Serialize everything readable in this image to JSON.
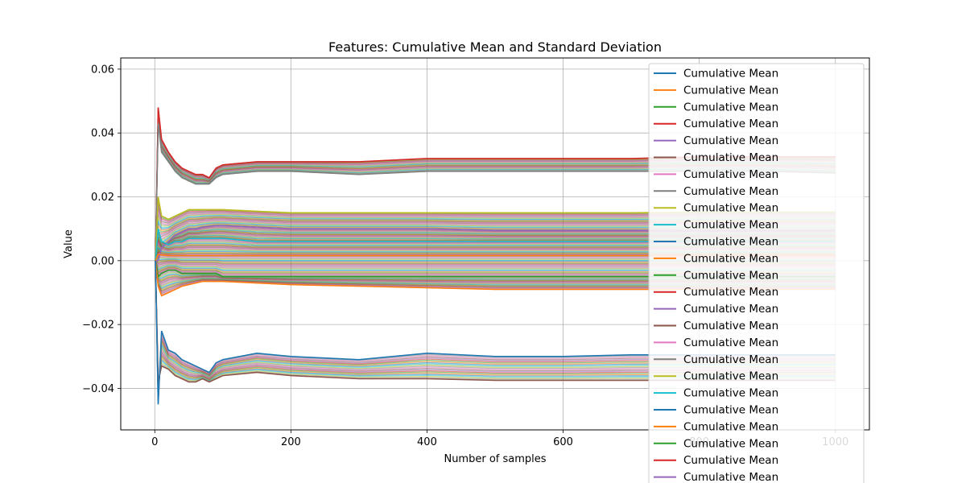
{
  "chart_data": {
    "type": "line",
    "title": "Features: Cumulative Mean and Standard Deviation",
    "xlabel": "Number of samples",
    "ylabel": "Value",
    "xlim": [
      -50,
      1050
    ],
    "ylim": [
      -0.053,
      0.0635
    ],
    "x_ticks": [
      0,
      200,
      400,
      600,
      800,
      1000
    ],
    "x_tick_labels": [
      "0",
      "200",
      "400",
      "600",
      "800",
      "1000"
    ],
    "y_ticks": [
      -0.04,
      -0.02,
      0.0,
      0.02,
      0.04,
      0.06
    ],
    "y_tick_labels": [
      "−0.04",
      "−0.02",
      "0.00",
      "0.02",
      "0.04",
      "0.06"
    ],
    "grid": true,
    "legend_position": "upper-right",
    "x_samples": [
      1,
      5,
      10,
      20,
      30,
      40,
      50,
      60,
      70,
      80,
      90,
      100,
      150,
      200,
      300,
      400,
      500,
      600,
      700,
      800,
      900,
      1000
    ],
    "series": [
      {
        "name": "Cumulative Mean",
        "color": "#d62728",
        "values": [
          0.0,
          0.048,
          0.038,
          0.034,
          0.031,
          0.029,
          0.028,
          0.027,
          0.027,
          0.026,
          0.029,
          0.03,
          0.031,
          0.031,
          0.031,
          0.032,
          0.032,
          0.032,
          0.032,
          0.0325,
          0.0325,
          0.0325
        ]
      },
      {
        "name": "Cumulative Mean",
        "color": "#7f7f7f",
        "values": [
          0.0,
          0.043,
          0.034,
          0.031,
          0.028,
          0.026,
          0.025,
          0.024,
          0.024,
          0.024,
          0.026,
          0.027,
          0.028,
          0.028,
          0.027,
          0.028,
          0.028,
          0.028,
          0.028,
          0.028,
          0.028,
          0.0275
        ]
      },
      {
        "name": "Cumulative Mean",
        "color": "#bcbd22",
        "values": [
          0.0,
          0.02,
          0.014,
          0.013,
          0.014,
          0.015,
          0.016,
          0.016,
          0.016,
          0.016,
          0.016,
          0.016,
          0.0155,
          0.015,
          0.015,
          0.015,
          0.015,
          0.015,
          0.015,
          0.0152,
          0.0152,
          0.0152
        ]
      },
      {
        "name": "Cumulative Mean",
        "color": "#9467bd",
        "values": [
          0.0,
          0.0,
          0.004,
          0.006,
          0.008,
          0.009,
          0.01,
          0.01,
          0.0105,
          0.0108,
          0.011,
          0.011,
          0.0105,
          0.01,
          0.01,
          0.01,
          0.0095,
          0.0095,
          0.0095,
          0.0095,
          0.0095,
          0.0095
        ]
      },
      {
        "name": "Cumulative Mean",
        "color": "#17becf",
        "values": [
          0.0,
          0.01,
          0.006,
          0.005,
          0.006,
          0.006,
          0.007,
          0.007,
          0.007,
          0.007,
          0.007,
          0.007,
          0.006,
          0.006,
          0.006,
          0.006,
          0.006,
          0.006,
          0.006,
          0.006,
          0.006,
          0.006
        ]
      },
      {
        "name": "Cumulative Mean",
        "color": "#ff7f0e",
        "values": [
          0.0,
          0.002,
          0.0018,
          0.0016,
          0.0016,
          0.0016,
          0.0016,
          0.0016,
          0.0016,
          0.0016,
          0.0016,
          0.0016,
          0.0016,
          0.0016,
          0.0016,
          0.0016,
          0.0016,
          0.0016,
          0.0016,
          0.0016,
          0.0016,
          0.0016
        ]
      },
      {
        "name": "Cumulative Mean",
        "color": "#2ca02c",
        "values": [
          0.0,
          -0.005,
          -0.004,
          -0.003,
          -0.003,
          -0.004,
          -0.004,
          -0.004,
          -0.004,
          -0.004,
          -0.004,
          -0.005,
          -0.005,
          -0.005,
          -0.005,
          -0.005,
          -0.005,
          -0.005,
          -0.005,
          -0.005,
          -0.005,
          -0.005
        ]
      },
      {
        "name": "Cumulative Mean",
        "color": "#ff7f0e",
        "values": [
          0.0,
          -0.008,
          -0.011,
          -0.01,
          -0.009,
          -0.008,
          -0.0075,
          -0.007,
          -0.0065,
          -0.0065,
          -0.0065,
          -0.0065,
          -0.007,
          -0.0075,
          -0.008,
          -0.0085,
          -0.009,
          -0.009,
          -0.009,
          -0.009,
          -0.009,
          -0.009
        ]
      },
      {
        "name": "Cumulative Mean",
        "color": "#8c564b",
        "values": [
          0.0,
          -0.038,
          -0.033,
          -0.034,
          -0.036,
          -0.037,
          -0.038,
          -0.038,
          -0.037,
          -0.038,
          -0.037,
          -0.036,
          -0.035,
          -0.036,
          -0.037,
          -0.037,
          -0.0375,
          -0.0375,
          -0.0375,
          -0.0375,
          -0.0375,
          -0.0375
        ]
      },
      {
        "name": "Cumulative Mean",
        "color": "#1f77b4",
        "values": [
          0.0,
          -0.045,
          -0.022,
          -0.028,
          -0.029,
          -0.031,
          -0.032,
          -0.033,
          -0.034,
          -0.035,
          -0.032,
          -0.031,
          -0.029,
          -0.03,
          -0.031,
          -0.029,
          -0.03,
          -0.03,
          -0.0295,
          -0.0295,
          -0.0295,
          -0.0295
        ]
      }
    ],
    "legend_entries": [
      {
        "label": "Cumulative Mean",
        "color": "#1f77b4"
      },
      {
        "label": "Cumulative Mean",
        "color": "#ff7f0e"
      },
      {
        "label": "Cumulative Mean",
        "color": "#2ca02c"
      },
      {
        "label": "Cumulative Mean",
        "color": "#d62728"
      },
      {
        "label": "Cumulative Mean",
        "color": "#9467bd"
      },
      {
        "label": "Cumulative Mean",
        "color": "#8c564b"
      },
      {
        "label": "Cumulative Mean",
        "color": "#e377c2"
      },
      {
        "label": "Cumulative Mean",
        "color": "#7f7f7f"
      },
      {
        "label": "Cumulative Mean",
        "color": "#bcbd22"
      },
      {
        "label": "Cumulative Mean",
        "color": "#17becf"
      },
      {
        "label": "Cumulative Mean",
        "color": "#1f77b4"
      },
      {
        "label": "Cumulative Mean",
        "color": "#ff7f0e"
      },
      {
        "label": "Cumulative Mean",
        "color": "#2ca02c"
      },
      {
        "label": "Cumulative Mean",
        "color": "#d62728"
      },
      {
        "label": "Cumulative Mean",
        "color": "#9467bd"
      },
      {
        "label": "Cumulative Mean",
        "color": "#8c564b"
      },
      {
        "label": "Cumulative Mean",
        "color": "#e377c2"
      },
      {
        "label": "Cumulative Mean",
        "color": "#7f7f7f"
      },
      {
        "label": "Cumulative Mean",
        "color": "#bcbd22"
      },
      {
        "label": "Cumulative Mean",
        "color": "#17becf"
      },
      {
        "label": "Cumulative Mean",
        "color": "#1f77b4"
      },
      {
        "label": "Cumulative Mean",
        "color": "#ff7f0e"
      },
      {
        "label": "Cumulative Mean",
        "color": "#2ca02c"
      },
      {
        "label": "Cumulative Mean",
        "color": "#d62728"
      },
      {
        "label": "Cumulative Mean",
        "color": "#9467bd"
      }
    ]
  }
}
